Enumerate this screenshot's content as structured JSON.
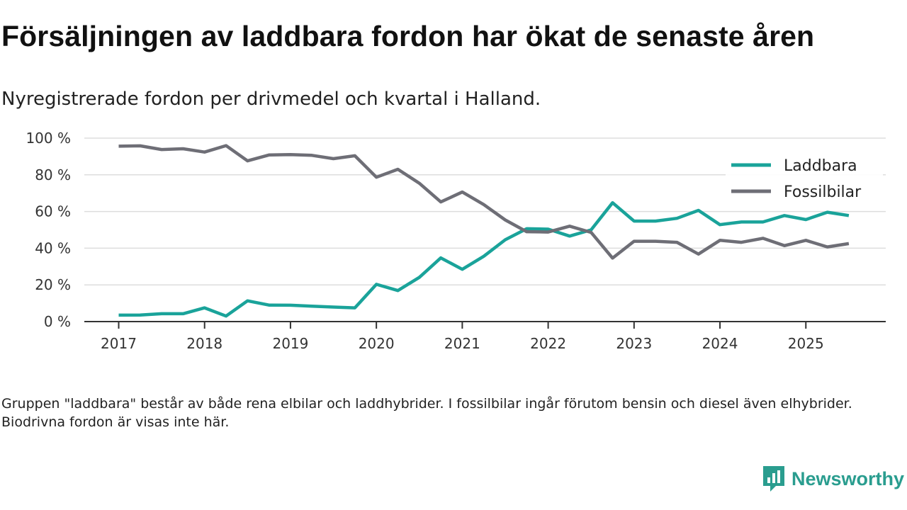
{
  "title": "Försäljningen av laddbara fordon har ökat de senaste åren",
  "subtitle": "Nyregistrerade fordon per drivmedel och kvartal i Halland.",
  "footnote": "Gruppen \"laddbara\" består av både rena elbilar och laddhybrider. I fossilbilar ingår förutom bensin och diesel även elhybrider. Biodrivna fordon är visas inte här.",
  "brand": {
    "name": "Newsworthy",
    "icon": "newsworthy-logo-icon"
  },
  "colors": {
    "laddbara": "#1aa39a",
    "fossil": "#6e6e76",
    "grid": "#dddddd",
    "axis": "#333333"
  },
  "chart_data": {
    "type": "line",
    "title": "Försäljningen av laddbara fordon har ökat de senaste åren",
    "xlabel": "",
    "ylabel": "",
    "x_start": 2017,
    "x_step": 0.25,
    "xlim": [
      2016.6,
      2025.93
    ],
    "ylim": [
      0,
      100
    ],
    "x_ticks": [
      2017,
      2018,
      2019,
      2020,
      2021,
      2022,
      2023,
      2024,
      2025
    ],
    "x_tick_labels": [
      "2017",
      "2018",
      "2019",
      "2020",
      "2021",
      "2022",
      "2023",
      "2024",
      "2025"
    ],
    "y_ticks": [
      0,
      20,
      40,
      60,
      80,
      100
    ],
    "y_tick_labels": [
      "0 %",
      "20 %",
      "40 %",
      "60 %",
      "80 %",
      "100 %"
    ],
    "legend_position": "top-right",
    "grid": true,
    "series": [
      {
        "name": "Laddbara",
        "color_key": "laddbara",
        "values": [
          3.5,
          3.6,
          4.3,
          4.3,
          7.5,
          3.0,
          11.3,
          9.0,
          8.9,
          8.4,
          7.9,
          7.5,
          20.3,
          16.9,
          24.1,
          34.7,
          28.5,
          35.6,
          44.6,
          50.6,
          50.4,
          46.6,
          50.0,
          64.8,
          54.8,
          54.8,
          56.3,
          60.6,
          52.8,
          54.3,
          54.3,
          57.8,
          55.6,
          59.6,
          57.8
        ]
      },
      {
        "name": "Fossilbilar",
        "color_key": "fossil",
        "values": [
          95.6,
          95.8,
          93.8,
          94.2,
          92.4,
          95.9,
          87.6,
          90.8,
          91.0,
          90.6,
          88.8,
          90.4,
          78.7,
          83.0,
          75.4,
          65.2,
          70.6,
          63.8,
          55.4,
          49.0,
          48.8,
          52.0,
          48.6,
          34.6,
          43.8,
          43.8,
          43.2,
          36.8,
          44.3,
          43.2,
          45.4,
          41.4,
          44.3,
          40.7,
          42.5
        ]
      }
    ]
  }
}
